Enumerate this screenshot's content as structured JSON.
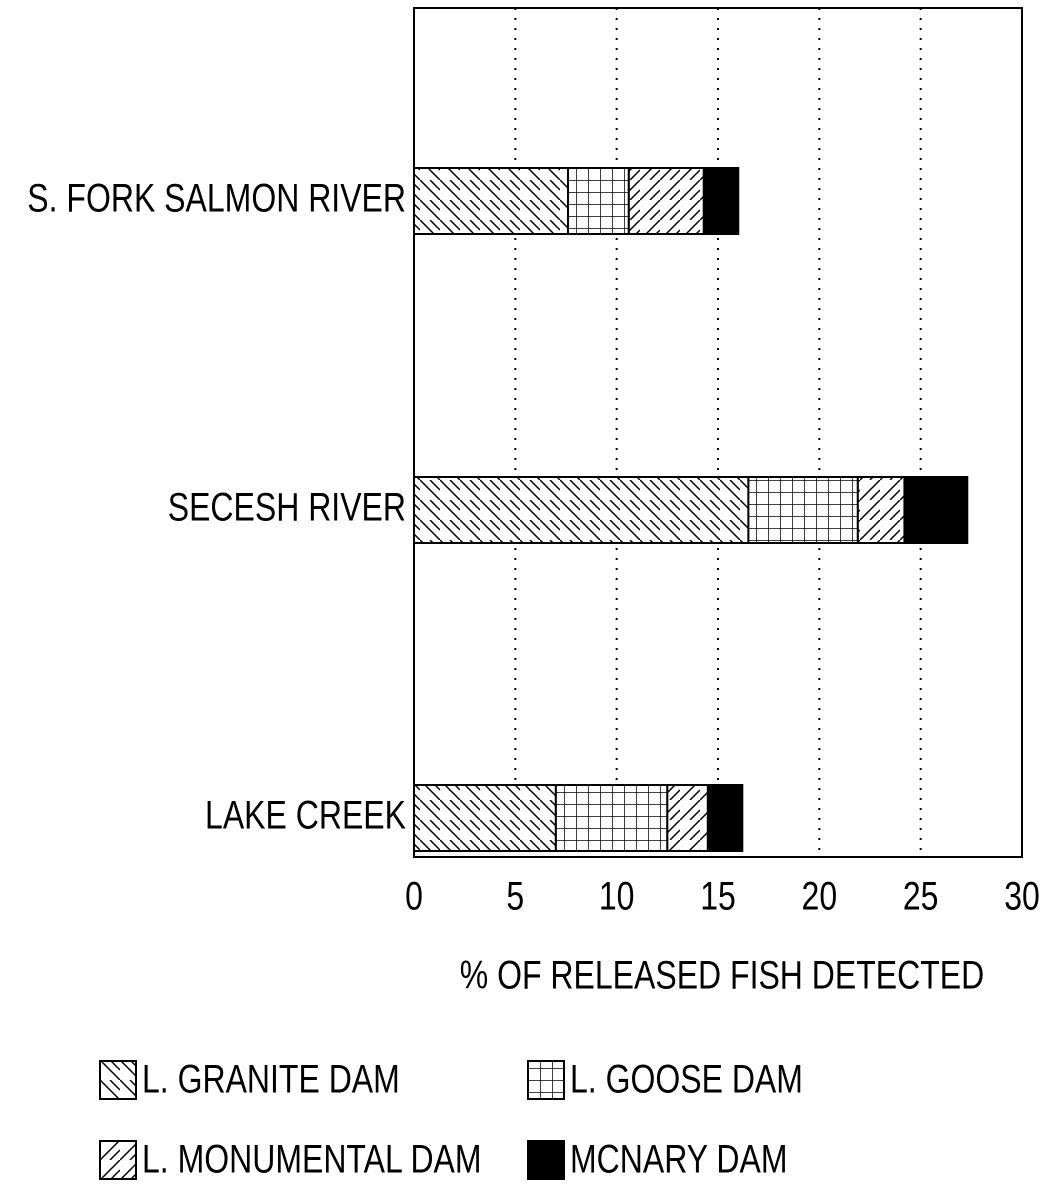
{
  "chart_data": {
    "type": "stacked-bar-horizontal",
    "x_label": "% OF RELEASED FISH DETECTED",
    "categories": [
      "S. FORK SALMON RIVER",
      "SECESH RIVER",
      "LAKE CREEK"
    ],
    "series": [
      {
        "name": "L. GRANITE DAM",
        "color": "#000000",
        "pattern": "diagonal-back",
        "values": [
          7.6,
          16.5,
          7.0
        ]
      },
      {
        "name": "L. GOOSE DAM",
        "color": "#000000",
        "pattern": "grid",
        "values": [
          3.0,
          5.4,
          5.5
        ]
      },
      {
        "name": "L. MONUMENTAL DAM",
        "color": "#000000",
        "pattern": "diagonal-forward",
        "values": [
          3.7,
          2.3,
          2.0
        ]
      },
      {
        "name": "MCNARY DAM",
        "color": "#000000",
        "pattern": "solid",
        "values": [
          1.7,
          3.1,
          1.7
        ]
      }
    ],
    "xlim": [
      0,
      30
    ],
    "xticks": [
      0,
      5,
      10,
      15,
      20,
      25,
      30
    ],
    "grid": true,
    "grid_style": "dotted",
    "legend": "bottom"
  }
}
